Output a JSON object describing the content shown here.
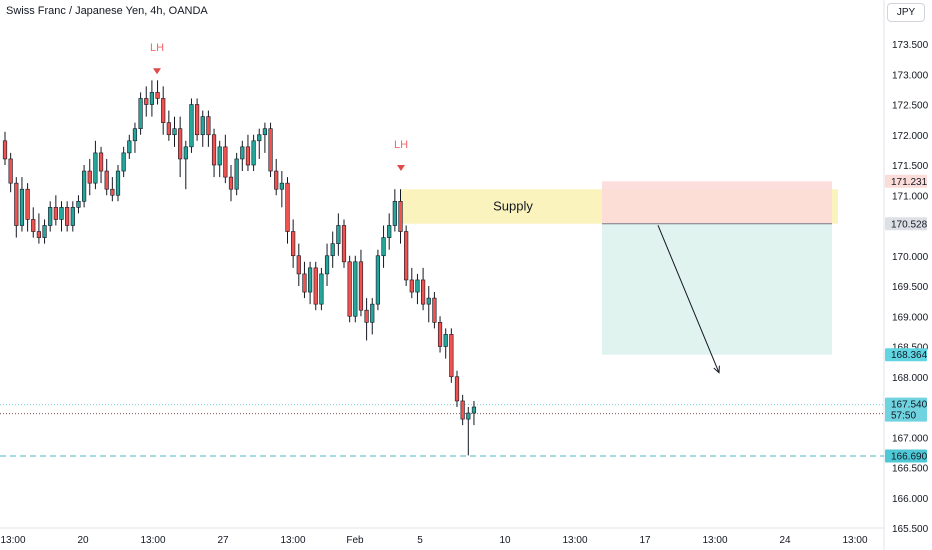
{
  "header": {
    "title": "Swiss Franc / Japanese Yen, 4h, OANDA",
    "currency": "JPY"
  },
  "chart_data": {
    "type": "candlestick",
    "y_axis": {
      "range": [
        165.5,
        173.8
      ],
      "ticks": [
        "173.500",
        "173.000",
        "172.500",
        "172.000",
        "171.500",
        "171.000",
        "170.000",
        "169.500",
        "169.000",
        "168.500",
        "168.000",
        "167.000",
        "166.500",
        "166.000",
        "165.500"
      ]
    },
    "x_axis": {
      "ticks": [
        "13:00",
        "20",
        "13:00",
        "27",
        "13:00",
        "Feb",
        "5",
        "10",
        "13:00",
        "17",
        "13:00",
        "24",
        "13:00"
      ]
    },
    "candles": [
      [
        171.9,
        172.05,
        171.5,
        171.6
      ],
      [
        171.6,
        171.7,
        171.05,
        171.2
      ],
      [
        171.2,
        171.3,
        170.3,
        170.5
      ],
      [
        170.5,
        171.3,
        170.4,
        171.1
      ],
      [
        171.1,
        171.2,
        170.4,
        170.6
      ],
      [
        170.6,
        170.8,
        170.3,
        170.4
      ],
      [
        170.4,
        170.7,
        170.2,
        170.3
      ],
      [
        170.3,
        170.6,
        170.2,
        170.5
      ],
      [
        170.5,
        170.9,
        170.4,
        170.8
      ],
      [
        170.8,
        171.0,
        170.5,
        170.6
      ],
      [
        170.6,
        170.9,
        170.4,
        170.8
      ],
      [
        170.8,
        170.9,
        170.4,
        170.5
      ],
      [
        170.5,
        170.9,
        170.4,
        170.8
      ],
      [
        170.8,
        171.0,
        170.7,
        170.9
      ],
      [
        170.9,
        171.5,
        170.8,
        171.4
      ],
      [
        171.4,
        171.6,
        171.0,
        171.2
      ],
      [
        171.2,
        171.9,
        171.1,
        171.7
      ],
      [
        171.7,
        171.8,
        171.2,
        171.4
      ],
      [
        171.4,
        171.6,
        171.0,
        171.1
      ],
      [
        171.1,
        171.3,
        170.9,
        171.0
      ],
      [
        171.0,
        171.5,
        170.9,
        171.4
      ],
      [
        171.4,
        171.8,
        171.3,
        171.7
      ],
      [
        171.7,
        172.0,
        171.6,
        171.9
      ],
      [
        171.9,
        172.2,
        171.7,
        172.1
      ],
      [
        172.1,
        172.7,
        172.0,
        172.6
      ],
      [
        172.6,
        172.8,
        172.3,
        172.5
      ],
      [
        172.5,
        172.9,
        172.3,
        172.7
      ],
      [
        172.7,
        172.9,
        172.5,
        172.6
      ],
      [
        172.6,
        172.8,
        172.0,
        172.2
      ],
      [
        172.2,
        172.4,
        171.9,
        172.0
      ],
      [
        172.0,
        172.3,
        171.8,
        172.1
      ],
      [
        172.1,
        172.3,
        171.3,
        171.6
      ],
      [
        171.6,
        171.9,
        171.1,
        171.8
      ],
      [
        171.8,
        172.6,
        171.7,
        172.5
      ],
      [
        172.5,
        172.6,
        171.9,
        172.0
      ],
      [
        172.0,
        172.4,
        171.8,
        172.3
      ],
      [
        172.3,
        172.4,
        171.8,
        172.0
      ],
      [
        172.0,
        172.1,
        171.3,
        171.5
      ],
      [
        171.5,
        171.9,
        171.3,
        171.8
      ],
      [
        171.8,
        172.0,
        171.2,
        171.3
      ],
      [
        171.3,
        171.5,
        170.9,
        171.1
      ],
      [
        171.1,
        171.7,
        171.0,
        171.6
      ],
      [
        171.6,
        171.9,
        171.4,
        171.8
      ],
      [
        171.8,
        172.0,
        171.4,
        171.5
      ],
      [
        171.5,
        172.0,
        171.4,
        171.9
      ],
      [
        171.9,
        172.1,
        171.6,
        172.0
      ],
      [
        172.0,
        172.2,
        171.7,
        172.1
      ],
      [
        172.1,
        172.2,
        171.3,
        171.4
      ],
      [
        171.4,
        171.6,
        171.0,
        171.1
      ],
      [
        171.1,
        171.4,
        170.8,
        171.2
      ],
      [
        171.2,
        171.3,
        170.2,
        170.4
      ],
      [
        170.4,
        170.6,
        169.8,
        170.0
      ],
      [
        170.0,
        170.2,
        169.5,
        169.7
      ],
      [
        169.7,
        169.9,
        169.3,
        169.4
      ],
      [
        169.4,
        169.9,
        169.2,
        169.8
      ],
      [
        169.8,
        169.9,
        169.1,
        169.2
      ],
      [
        169.2,
        169.8,
        169.1,
        169.7
      ],
      [
        169.7,
        170.2,
        169.5,
        170.0
      ],
      [
        170.0,
        170.4,
        169.8,
        170.2
      ],
      [
        170.2,
        170.7,
        170.0,
        170.5
      ],
      [
        170.5,
        170.6,
        169.8,
        169.9
      ],
      [
        169.9,
        170.0,
        168.9,
        169.0
      ],
      [
        169.0,
        170.0,
        168.9,
        169.9
      ],
      [
        169.9,
        170.1,
        169.0,
        169.1
      ],
      [
        169.1,
        169.3,
        168.6,
        168.9
      ],
      [
        168.9,
        169.3,
        168.7,
        169.2
      ],
      [
        169.2,
        170.1,
        169.1,
        170.0
      ],
      [
        170.0,
        170.5,
        169.8,
        170.3
      ],
      [
        170.3,
        170.7,
        170.1,
        170.5
      ],
      [
        170.5,
        171.1,
        170.4,
        170.9
      ],
      [
        170.9,
        171.1,
        170.2,
        170.4
      ],
      [
        170.4,
        170.5,
        169.5,
        169.6
      ],
      [
        169.6,
        169.8,
        169.3,
        169.4
      ],
      [
        169.4,
        169.7,
        169.2,
        169.6
      ],
      [
        169.6,
        169.8,
        169.1,
        169.2
      ],
      [
        169.2,
        169.5,
        168.9,
        169.3
      ],
      [
        169.3,
        169.4,
        168.8,
        168.9
      ],
      [
        168.9,
        169.0,
        168.4,
        168.5
      ],
      [
        168.5,
        168.8,
        168.3,
        168.7
      ],
      [
        168.7,
        168.8,
        167.9,
        168.0
      ],
      [
        168.0,
        168.1,
        167.5,
        167.6
      ],
      [
        167.6,
        167.7,
        167.2,
        167.3
      ],
      [
        167.3,
        167.5,
        166.7,
        167.4
      ],
      [
        167.4,
        167.6,
        167.2,
        167.5
      ]
    ],
    "supply_zone": {
      "label": "Supply",
      "top": 171.1,
      "bottom": 170.53
    },
    "swing_labels": [
      {
        "text": "LH",
        "price": 173.05
      },
      {
        "text": "LH",
        "price": 171.45
      }
    ],
    "position": {
      "stop_price": 171.231,
      "entry_price": 170.528,
      "target_price": 168.364
    },
    "projection_arrow": {
      "from_price": 170.9,
      "to_price": 168.1
    },
    "current_price": 167.54,
    "countdown": "57:50",
    "horizontal_level": 166.69,
    "price_labels": [
      "171.231",
      "170.528",
      "168.364",
      "167.540",
      "166.690"
    ],
    "colors": {
      "up": "#26a69a",
      "down": "#ef5350",
      "candle_border": "#131722",
      "supply_fill": "#fbf3bd",
      "stop_fill": "#fcdcd9",
      "target_fill": "#e0f3ef",
      "stop_label": "#fcdcd9",
      "entry_label": "#dde0e5",
      "target_label": "#61d6e2",
      "last_label": "#6fd3e0",
      "level_label": "#4fc8d6",
      "level_line": "#48b3c2",
      "lh_text": "#f26868",
      "lh_marker": "#e04a4a"
    }
  }
}
